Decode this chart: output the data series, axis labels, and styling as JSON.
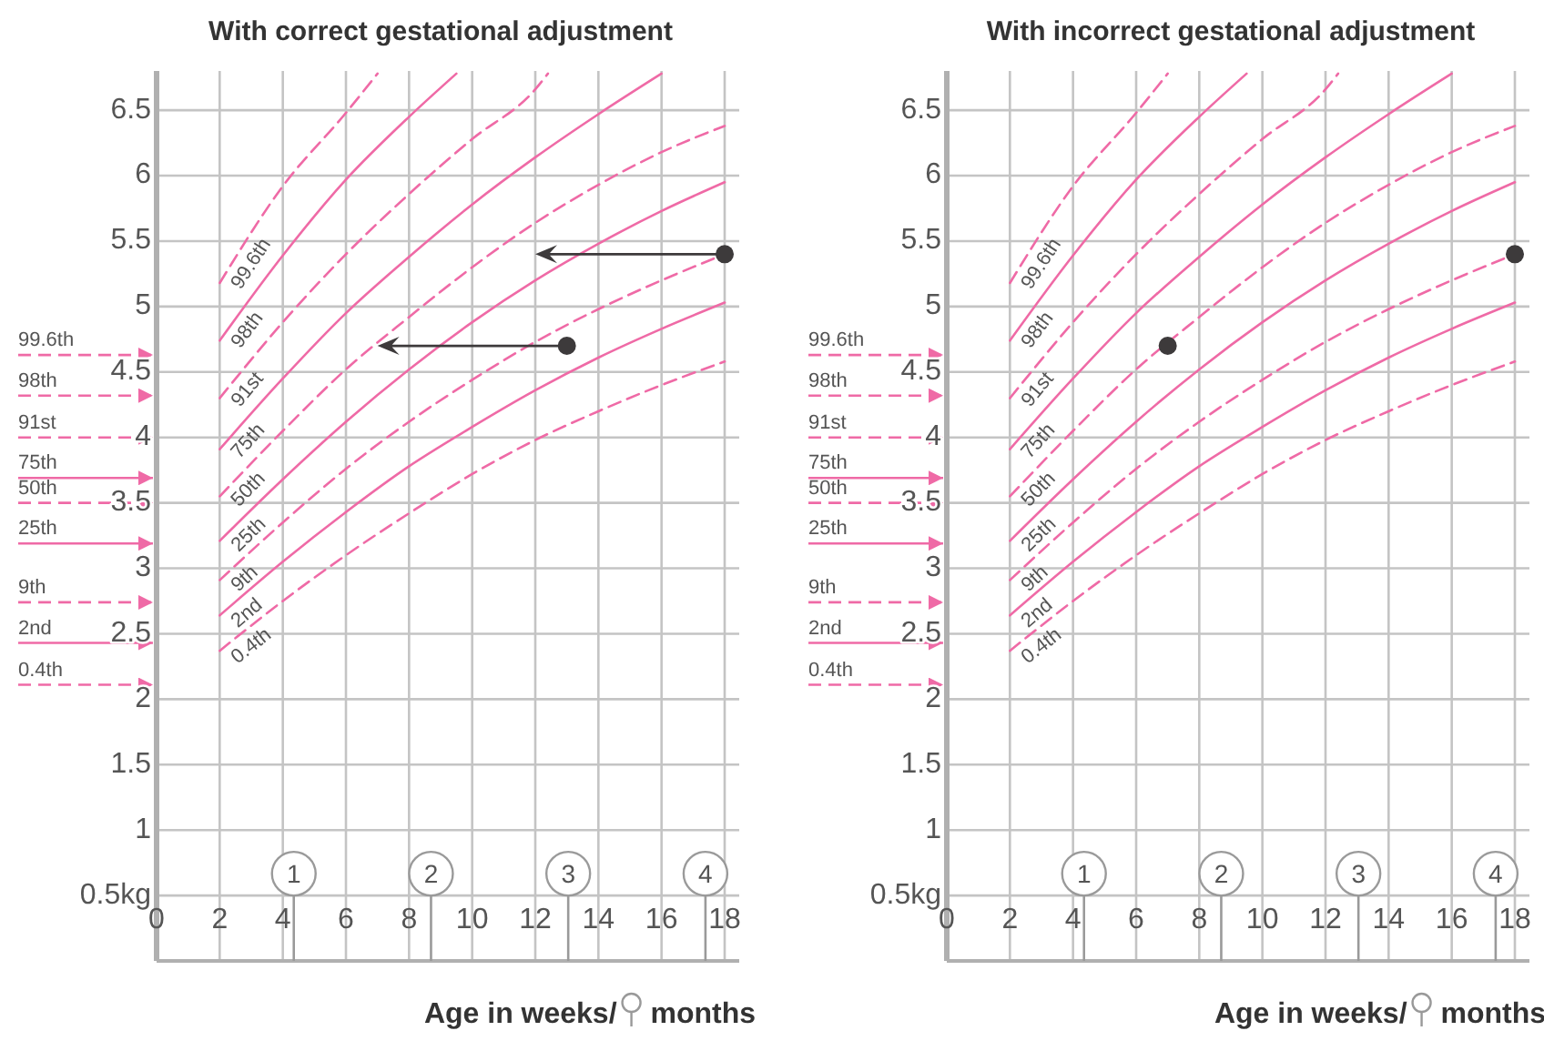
{
  "chart_data": [
    {
      "type": "line",
      "title": "With correct gestational adjustment",
      "xlabel": "Age in weeks/ months",
      "xlim": [
        0,
        18
      ],
      "xticks": [
        0,
        2,
        4,
        6,
        8,
        10,
        12,
        14,
        16,
        18
      ],
      "ylim": [
        0,
        6.8
      ],
      "yticks": [
        {
          "value": 0.5,
          "label": "0.5kg"
        },
        1,
        1.5,
        2,
        2.5,
        3,
        3.5,
        4,
        4.5,
        5,
        5.5,
        6,
        6.5
      ],
      "grid": true,
      "ref_lines": [
        {
          "axis": "y",
          "value": 4.63,
          "label": "99.6th",
          "line_style": "dashed",
          "color": "#ef6aa6"
        },
        {
          "axis": "y",
          "value": 4.32,
          "label": "98th",
          "line_style": "dashed",
          "color": "#ef6aa6"
        },
        {
          "axis": "y",
          "value": 4.0,
          "label": "91st",
          "line_style": "dashed",
          "color": "#ef6aa6"
        },
        {
          "axis": "y",
          "value": 3.69,
          "label": "75th",
          "line_style": "solid",
          "color": "#ef6aa6"
        },
        {
          "axis": "y",
          "value": 3.5,
          "label": "50th",
          "line_style": "dashed",
          "color": "#ef6aa6"
        },
        {
          "axis": "y",
          "value": 3.19,
          "label": "25th",
          "line_style": "solid",
          "color": "#ef6aa6"
        },
        {
          "axis": "y",
          "value": 2.74,
          "label": "9th",
          "line_style": "dashed",
          "color": "#ef6aa6"
        },
        {
          "axis": "y",
          "value": 2.43,
          "label": "2nd",
          "line_style": "solid",
          "color": "#ef6aa6"
        },
        {
          "axis": "y",
          "value": 2.11,
          "label": "0.4th",
          "line_style": "dashed",
          "color": "#ef6aa6"
        }
      ],
      "x2lim": [
        0,
        4.14
      ],
      "x2ticks": [
        1,
        2,
        3,
        4
      ],
      "series": [
        {
          "name": "0.4th",
          "color": "#ef6aa6",
          "line_style": "dashed",
          "marker": "none",
          "x": [
            2,
            4,
            6,
            8,
            10,
            12,
            14,
            16,
            18
          ],
          "values": [
            2.37,
            2.75,
            3.1,
            3.42,
            3.72,
            3.98,
            4.2,
            4.4,
            4.58
          ]
        },
        {
          "name": "2nd",
          "color": "#ef6aa6",
          "line_style": "solid",
          "marker": "none",
          "x": [
            2,
            4,
            6,
            8,
            10,
            12,
            14,
            16,
            18
          ],
          "values": [
            2.64,
            3.05,
            3.43,
            3.78,
            4.08,
            4.36,
            4.61,
            4.83,
            5.03
          ]
        },
        {
          "name": "9th",
          "color": "#ef6aa6",
          "line_style": "dashed",
          "marker": "none",
          "x": [
            2,
            4,
            6,
            8,
            10,
            12,
            14,
            16,
            18
          ],
          "values": [
            2.91,
            3.35,
            3.76,
            4.12,
            4.44,
            4.73,
            4.98,
            5.2,
            5.4
          ]
        },
        {
          "name": "25th",
          "color": "#ef6aa6",
          "line_style": "solid",
          "marker": "none",
          "x": [
            2,
            4,
            6,
            8,
            10,
            12,
            14,
            16,
            18
          ],
          "values": [
            3.21,
            3.68,
            4.12,
            4.52,
            4.88,
            5.2,
            5.48,
            5.73,
            5.95
          ]
        },
        {
          "name": "50th",
          "color": "#ef6aa6",
          "line_style": "dashed",
          "marker": "none",
          "x": [
            2,
            4,
            6,
            8,
            10,
            12,
            14,
            16,
            18
          ],
          "values": [
            3.55,
            4.05,
            4.52,
            4.92,
            5.3,
            5.64,
            5.93,
            6.18,
            6.38
          ]
        },
        {
          "name": "75th",
          "color": "#ef6aa6",
          "line_style": "solid",
          "marker": "none",
          "x": [
            2,
            4,
            6,
            8,
            10,
            12,
            14,
            16
          ],
          "values": [
            3.91,
            4.45,
            4.95,
            5.38,
            5.78,
            6.14,
            6.47,
            6.78
          ]
        },
        {
          "name": "91st",
          "color": "#ef6aa6",
          "line_style": "dashed",
          "marker": "none",
          "x": [
            2,
            4,
            6,
            8,
            10,
            12,
            12.4
          ],
          "values": [
            4.3,
            4.88,
            5.4,
            5.86,
            6.28,
            6.66,
            6.78
          ]
        },
        {
          "name": "98th",
          "color": "#ef6aa6",
          "line_style": "solid",
          "marker": "none",
          "x": [
            2,
            4,
            6,
            8,
            9.5
          ],
          "values": [
            4.74,
            5.39,
            5.97,
            6.45,
            6.78
          ]
        },
        {
          "name": "99.6th",
          "color": "#ef6aa6",
          "line_style": "dashed",
          "marker": "none",
          "x": [
            2,
            4,
            6,
            7
          ],
          "values": [
            5.18,
            5.92,
            6.48,
            6.78
          ]
        },
        {
          "type": "scatter",
          "color": "#3d3a3b",
          "marker": "circle",
          "x": [
            18,
            13
          ],
          "values": [
            5.4,
            4.7
          ]
        }
      ]
    },
    {
      "type": "line",
      "title": "With incorrect gestational adjustment",
      "xlabel": "Age in weeks/ months",
      "xlim": [
        0,
        18
      ],
      "xticks": [
        0,
        2,
        4,
        6,
        8,
        10,
        12,
        14,
        16,
        18
      ],
      "ylim": [
        0,
        6.8
      ],
      "yticks": [
        {
          "value": 0.5,
          "label": "0.5kg"
        },
        1,
        1.5,
        2,
        2.5,
        3,
        3.5,
        4,
        4.5,
        5,
        5.5,
        6,
        6.5
      ],
      "grid": true,
      "ref_lines": [
        {
          "axis": "y",
          "value": 4.63,
          "label": "99.6th",
          "line_style": "dashed",
          "color": "#ef6aa6"
        },
        {
          "axis": "y",
          "value": 4.32,
          "label": "98th",
          "line_style": "dashed",
          "color": "#ef6aa6"
        },
        {
          "axis": "y",
          "value": 4.0,
          "label": "91st",
          "line_style": "dashed",
          "color": "#ef6aa6"
        },
        {
          "axis": "y",
          "value": 3.69,
          "label": "75th",
          "line_style": "solid",
          "color": "#ef6aa6"
        },
        {
          "axis": "y",
          "value": 3.5,
          "label": "50th",
          "line_style": "dashed",
          "color": "#ef6aa6"
        },
        {
          "axis": "y",
          "value": 3.19,
          "label": "25th",
          "line_style": "solid",
          "color": "#ef6aa6"
        },
        {
          "axis": "y",
          "value": 2.74,
          "label": "9th",
          "line_style": "dashed",
          "color": "#ef6aa6"
        },
        {
          "axis": "y",
          "value": 2.43,
          "label": "2nd",
          "line_style": "solid",
          "color": "#ef6aa6"
        },
        {
          "axis": "y",
          "value": 2.11,
          "label": "0.4th",
          "line_style": "dashed",
          "color": "#ef6aa6"
        }
      ],
      "x2lim": [
        0,
        4.14
      ],
      "x2ticks": [
        1,
        2,
        3,
        4
      ],
      "series": [
        {
          "name": "0.4th",
          "color": "#ef6aa6",
          "line_style": "dashed",
          "marker": "none",
          "x": [
            2,
            4,
            6,
            8,
            10,
            12,
            14,
            16,
            18
          ],
          "values": [
            2.37,
            2.75,
            3.1,
            3.42,
            3.72,
            3.98,
            4.2,
            4.4,
            4.58
          ]
        },
        {
          "name": "2nd",
          "color": "#ef6aa6",
          "line_style": "solid",
          "marker": "none",
          "x": [
            2,
            4,
            6,
            8,
            10,
            12,
            14,
            16,
            18
          ],
          "values": [
            2.64,
            3.05,
            3.43,
            3.78,
            4.08,
            4.36,
            4.61,
            4.83,
            5.03
          ]
        },
        {
          "name": "9th",
          "color": "#ef6aa6",
          "line_style": "dashed",
          "marker": "none",
          "x": [
            2,
            4,
            6,
            8,
            10,
            12,
            14,
            16,
            18
          ],
          "values": [
            2.91,
            3.35,
            3.76,
            4.12,
            4.44,
            4.73,
            4.98,
            5.2,
            5.4
          ]
        },
        {
          "name": "25th",
          "color": "#ef6aa6",
          "line_style": "solid",
          "marker": "none",
          "x": [
            2,
            4,
            6,
            8,
            10,
            12,
            14,
            16,
            18
          ],
          "values": [
            3.21,
            3.68,
            4.12,
            4.52,
            4.88,
            5.2,
            5.48,
            5.73,
            5.95
          ]
        },
        {
          "name": "50th",
          "color": "#ef6aa6",
          "line_style": "dashed",
          "marker": "none",
          "x": [
            2,
            4,
            6,
            8,
            10,
            12,
            14,
            16,
            18
          ],
          "values": [
            3.55,
            4.05,
            4.52,
            4.92,
            5.3,
            5.64,
            5.93,
            6.18,
            6.38
          ]
        },
        {
          "name": "75th",
          "color": "#ef6aa6",
          "line_style": "solid",
          "marker": "none",
          "x": [
            2,
            4,
            6,
            8,
            10,
            12,
            14,
            16
          ],
          "values": [
            3.91,
            4.45,
            4.95,
            5.38,
            5.78,
            6.14,
            6.47,
            6.78
          ]
        },
        {
          "name": "91st",
          "color": "#ef6aa6",
          "line_style": "dashed",
          "marker": "none",
          "x": [
            2,
            4,
            6,
            8,
            10,
            12,
            12.4
          ],
          "values": [
            4.3,
            4.88,
            5.4,
            5.86,
            6.28,
            6.66,
            6.78
          ]
        },
        {
          "name": "98th",
          "color": "#ef6aa6",
          "line_style": "solid",
          "marker": "none",
          "x": [
            2,
            4,
            6,
            8,
            9.5
          ],
          "values": [
            4.74,
            5.39,
            5.97,
            6.45,
            6.78
          ]
        },
        {
          "name": "99.6th",
          "color": "#ef6aa6",
          "line_style": "dashed",
          "marker": "none",
          "x": [
            2,
            4,
            6,
            7
          ],
          "values": [
            5.18,
            5.92,
            6.48,
            6.78
          ]
        },
        {
          "type": "scatter",
          "color": "#3d3a3b",
          "marker": "circle",
          "x": [
            7,
            18
          ],
          "values": [
            4.7,
            5.4
          ]
        }
      ]
    }
  ]
}
